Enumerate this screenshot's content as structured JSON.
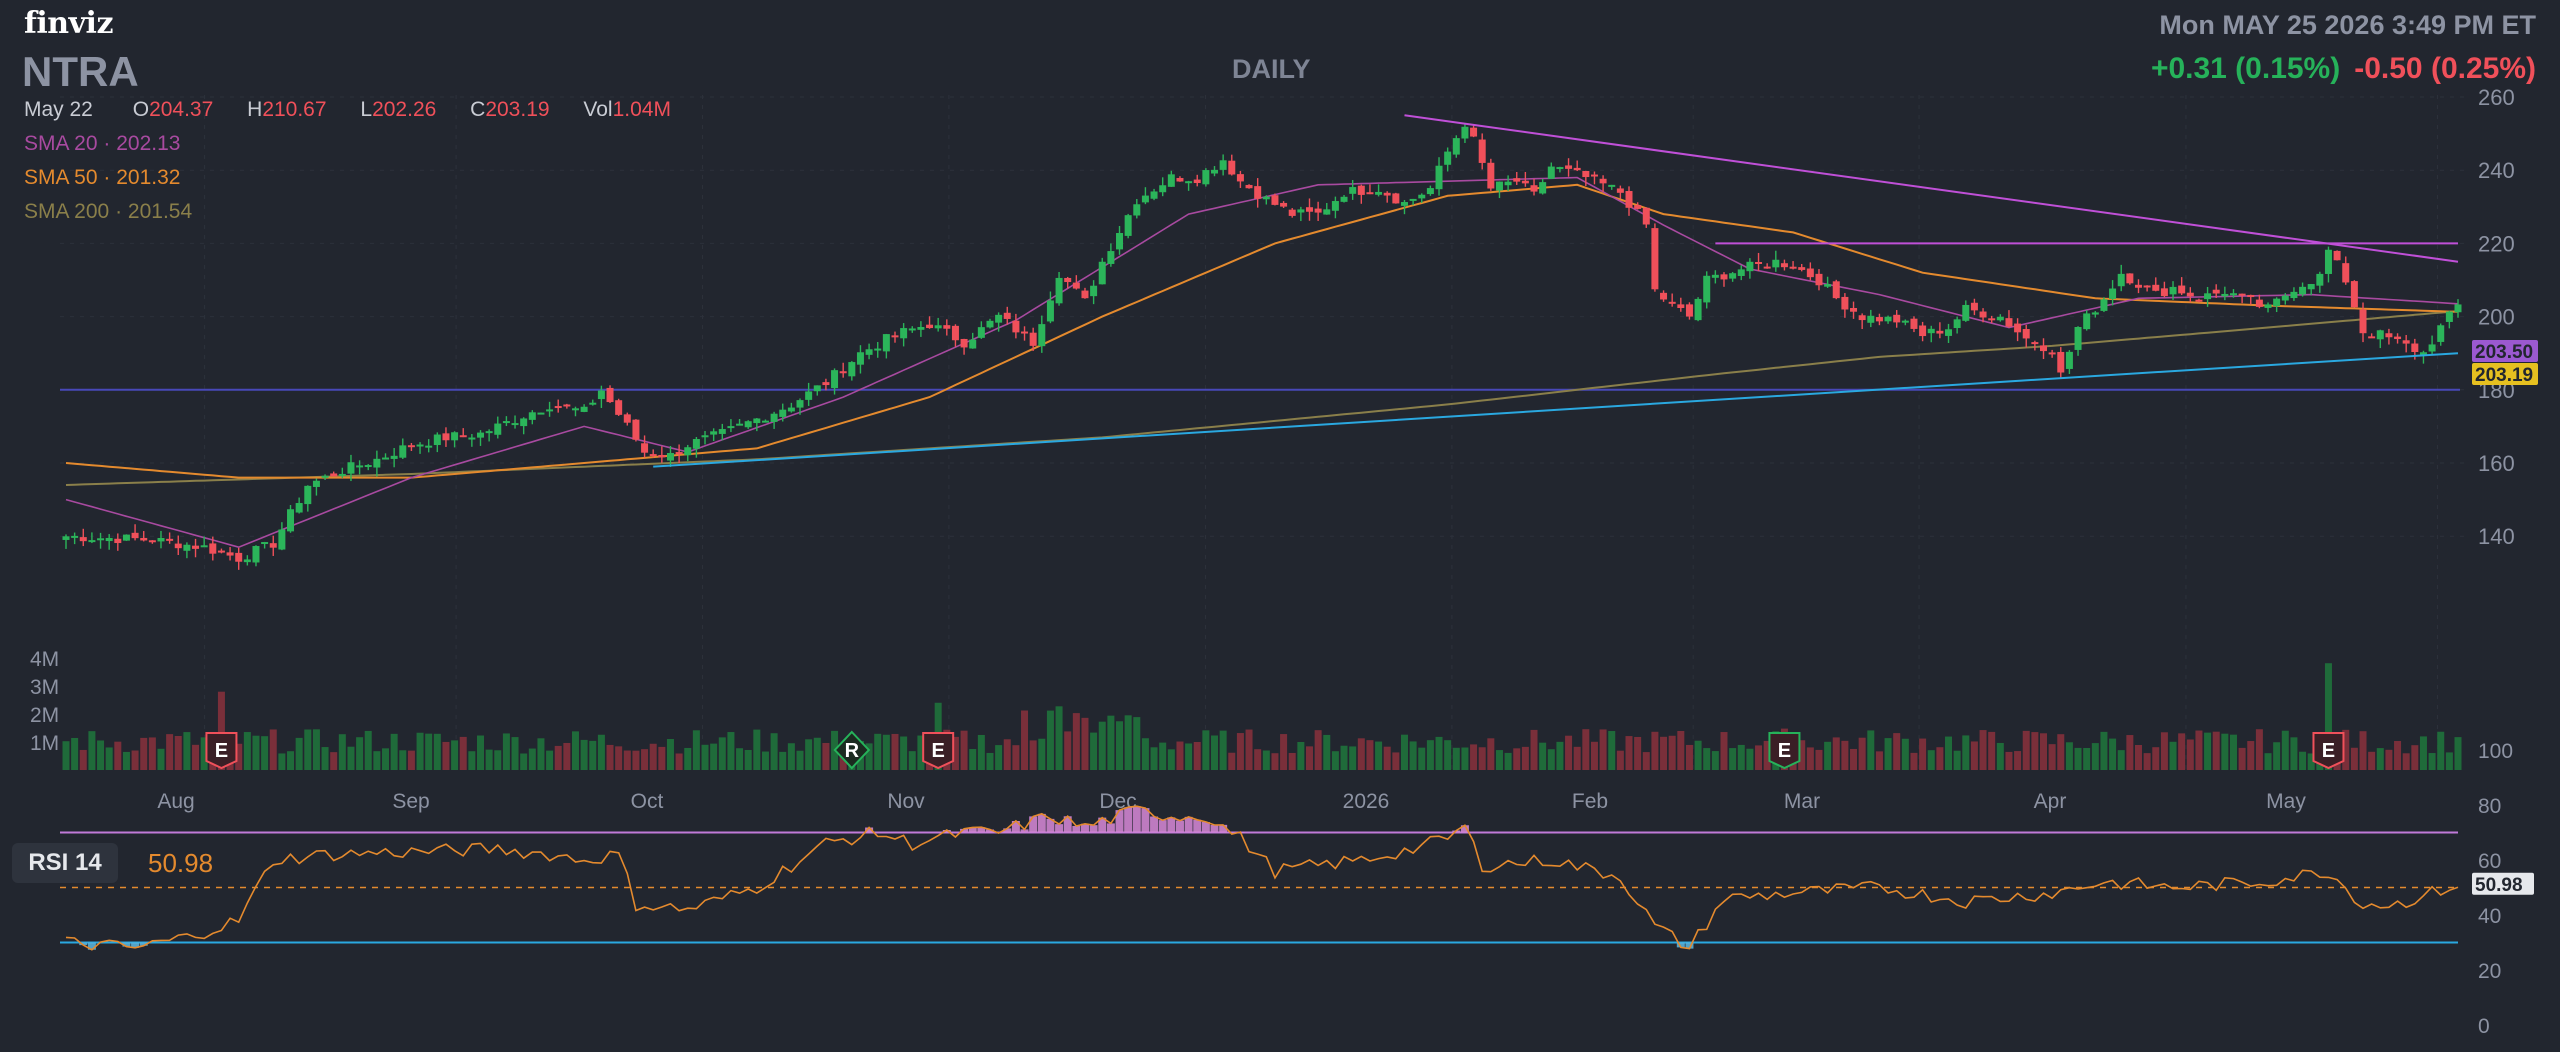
{
  "app": {
    "logo": "finviz",
    "datetime": "Mon MAY 25 2026 3:49 PM ET"
  },
  "header": {
    "ticker": "NTRA",
    "timeframe": "DAILY",
    "change_positive": "+0.31 (0.15%)",
    "change_negative": "-0.50 (0.25%)"
  },
  "ohlc": {
    "date": "May 22",
    "open_label": "O",
    "open": "204.37",
    "high_label": "H",
    "high": "210.67",
    "low_label": "L",
    "low": "202.26",
    "close_label": "C",
    "close": "203.19",
    "vol_label": "Vol",
    "vol": "1.04M"
  },
  "indicators": {
    "sma20_label": "SMA 20",
    "sma20": "202.13",
    "sma50_label": "SMA 50",
    "sma50": "201.32",
    "sma200_label": "SMA 200",
    "sma200": "201.54",
    "rsi_label": "RSI 14",
    "rsi": "50.98"
  },
  "colors": {
    "background": "#22262f",
    "up": "#2bb55a",
    "down": "#f0505a",
    "sma20": "#a84aa0",
    "sma50": "#e48a2e",
    "sma200": "#8a7f4a",
    "trend_upper": "#c050d8",
    "trend_lower": "#2aa8e0",
    "support": "#4848b8",
    "grid": "#2c313b",
    "axis_text": "#8d93a3"
  },
  "chart_data": [
    {
      "type": "candlestick",
      "title": "NTRA",
      "x_labels": [
        "Aug",
        "Sep",
        "Oct",
        "Nov",
        "Dec",
        "2026",
        "Feb",
        "Mar",
        "Apr",
        "May"
      ],
      "ylim": [
        135,
        260
      ],
      "y_ticks": [
        "260",
        "240",
        "220",
        "200",
        "180",
        "160",
        "140"
      ],
      "price_tags": {
        "sma20_tag": "203.50",
        "close_tag": "203.19"
      },
      "series_close_points": [
        [
          0,
          140
        ],
        [
          10,
          139
        ],
        [
          16,
          137
        ],
        [
          20,
          134
        ],
        [
          24,
          138
        ],
        [
          28,
          154
        ],
        [
          32,
          158
        ],
        [
          36,
          161
        ],
        [
          40,
          165
        ],
        [
          44,
          167
        ],
        [
          48,
          168
        ],
        [
          52,
          172
        ],
        [
          56,
          176
        ],
        [
          60,
          174
        ],
        [
          62,
          180
        ],
        [
          65,
          170
        ],
        [
          67,
          163
        ],
        [
          70,
          162
        ],
        [
          72,
          165
        ],
        [
          76,
          168
        ],
        [
          80,
          172
        ],
        [
          84,
          176
        ],
        [
          88,
          182
        ],
        [
          92,
          190
        ],
        [
          96,
          195
        ],
        [
          100,
          198
        ],
        [
          104,
          193
        ],
        [
          108,
          200
        ],
        [
          112,
          193
        ],
        [
          115,
          212
        ],
        [
          118,
          204
        ],
        [
          120,
          215
        ],
        [
          124,
          232
        ],
        [
          128,
          238
        ],
        [
          131,
          238
        ],
        [
          134,
          243
        ],
        [
          136,
          237
        ],
        [
          139,
          232
        ],
        [
          142,
          228
        ],
        [
          145,
          228
        ],
        [
          148,
          234
        ],
        [
          152,
          235
        ],
        [
          155,
          231
        ],
        [
          158,
          235
        ],
        [
          160,
          245
        ],
        [
          162,
          253
        ],
        [
          163,
          248
        ],
        [
          165,
          235
        ],
        [
          168,
          237
        ],
        [
          170,
          233
        ],
        [
          172,
          241
        ],
        [
          176,
          238
        ],
        [
          180,
          234
        ],
        [
          183,
          225
        ],
        [
          184,
          207
        ],
        [
          186,
          203
        ],
        [
          188,
          200
        ],
        [
          190,
          210
        ],
        [
          194,
          213
        ],
        [
          198,
          215
        ],
        [
          200,
          214
        ],
        [
          203,
          210
        ],
        [
          205,
          205
        ],
        [
          208,
          200
        ],
        [
          212,
          199
        ],
        [
          215,
          195
        ],
        [
          218,
          197
        ],
        [
          220,
          202
        ],
        [
          224,
          200
        ],
        [
          227,
          194
        ],
        [
          230,
          191
        ],
        [
          231,
          184
        ],
        [
          233,
          197
        ],
        [
          236,
          205
        ],
        [
          238,
          212
        ],
        [
          242,
          206
        ],
        [
          244,
          208
        ],
        [
          247,
          205
        ],
        [
          250,
          207
        ],
        [
          253,
          204
        ],
        [
          255,
          202
        ],
        [
          258,
          208
        ],
        [
          261,
          211
        ],
        [
          262,
          218
        ],
        [
          264,
          210
        ],
        [
          266,
          196
        ],
        [
          268,
          195
        ],
        [
          270,
          193
        ],
        [
          273,
          190
        ],
        [
          275,
          197
        ],
        [
          277,
          203
        ]
      ],
      "sma20_points": [
        [
          0,
          150
        ],
        [
          20,
          137
        ],
        [
          40,
          156
        ],
        [
          60,
          170
        ],
        [
          72,
          163
        ],
        [
          90,
          178
        ],
        [
          110,
          199
        ],
        [
          130,
          228
        ],
        [
          145,
          236
        ],
        [
          160,
          237
        ],
        [
          175,
          238
        ],
        [
          185,
          225
        ],
        [
          195,
          213
        ],
        [
          210,
          206
        ],
        [
          225,
          197
        ],
        [
          240,
          205
        ],
        [
          260,
          206
        ],
        [
          277,
          203.5
        ]
      ],
      "sma50_points": [
        [
          0,
          160
        ],
        [
          20,
          156
        ],
        [
          40,
          156
        ],
        [
          60,
          160
        ],
        [
          80,
          164
        ],
        [
          100,
          178
        ],
        [
          120,
          200
        ],
        [
          140,
          220
        ],
        [
          160,
          233
        ],
        [
          175,
          236
        ],
        [
          185,
          228
        ],
        [
          200,
          223
        ],
        [
          215,
          212
        ],
        [
          235,
          205
        ],
        [
          255,
          203
        ],
        [
          277,
          201.3
        ]
      ],
      "sma200_points": [
        [
          0,
          154
        ],
        [
          40,
          157
        ],
        [
          80,
          161
        ],
        [
          120,
          167
        ],
        [
          160,
          176
        ],
        [
          190,
          184
        ],
        [
          210,
          189
        ],
        [
          230,
          192
        ],
        [
          250,
          196
        ],
        [
          277,
          201.5
        ]
      ],
      "trendlines": {
        "upper": [
          [
            155,
            255
          ],
          [
            277,
            215
          ]
        ],
        "lower": [
          [
            68,
            159
          ],
          [
            277,
            190
          ]
        ],
        "resistance": [
          [
            191,
            220
          ],
          [
            277,
            220
          ]
        ],
        "support": [
          [
            0,
            180
          ],
          [
            277,
            180
          ]
        ]
      },
      "event_markers": [
        {
          "label": "E",
          "bar": 18
        },
        {
          "label": "R",
          "bar": 91
        },
        {
          "label": "E",
          "bar": 101
        },
        {
          "label": "E",
          "bar": 199
        },
        {
          "label": "E",
          "bar": 262
        }
      ]
    },
    {
      "type": "bar",
      "title": "Volume",
      "y_ticks": [
        "4M",
        "3M",
        "2M",
        "1M"
      ],
      "ylim": [
        0,
        4200000
      ]
    },
    {
      "type": "line",
      "title": "RSI 14",
      "y_ticks": [
        "100",
        "80",
        "60",
        "40",
        "20",
        "0"
      ],
      "ylim": [
        0,
        100
      ],
      "overbought": 70,
      "oversold": 30,
      "mid": 50,
      "last_value": "50.98",
      "points": [
        [
          0,
          30
        ],
        [
          8,
          28
        ],
        [
          14,
          32
        ],
        [
          20,
          38
        ],
        [
          24,
          60
        ],
        [
          30,
          62
        ],
        [
          40,
          63
        ],
        [
          50,
          64
        ],
        [
          56,
          62
        ],
        [
          60,
          60
        ],
        [
          64,
          62
        ],
        [
          66,
          44
        ],
        [
          72,
          42
        ],
        [
          80,
          50
        ],
        [
          88,
          66
        ],
        [
          94,
          70
        ],
        [
          98,
          66
        ],
        [
          104,
          70
        ],
        [
          108,
          70
        ],
        [
          114,
          76
        ],
        [
          118,
          72
        ],
        [
          124,
          78
        ],
        [
          128,
          76
        ],
        [
          132,
          76
        ],
        [
          136,
          68
        ],
        [
          140,
          56
        ],
        [
          150,
          60
        ],
        [
          156,
          64
        ],
        [
          160,
          68
        ],
        [
          162,
          72
        ],
        [
          164,
          58
        ],
        [
          172,
          60
        ],
        [
          180,
          54
        ],
        [
          184,
          36
        ],
        [
          188,
          28
        ],
        [
          192,
          46
        ],
        [
          200,
          48
        ],
        [
          210,
          50
        ],
        [
          220,
          45
        ],
        [
          230,
          48
        ],
        [
          236,
          52
        ],
        [
          244,
          50
        ],
        [
          254,
          52
        ],
        [
          262,
          56
        ],
        [
          266,
          44
        ],
        [
          270,
          44
        ],
        [
          277,
          51
        ]
      ]
    }
  ]
}
